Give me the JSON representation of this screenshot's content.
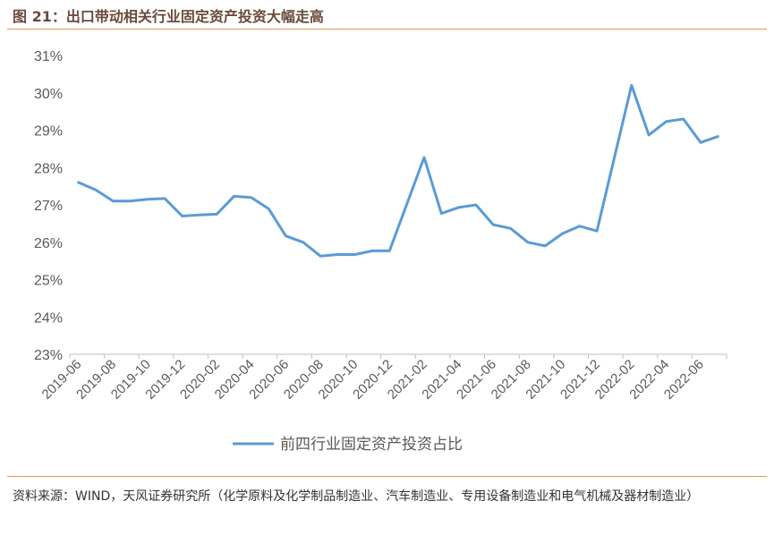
{
  "figure": {
    "title": "图 21：出口带动相关行业固定资产投资大幅走高",
    "source": "资料来源：WIND，天风证券研究所（化学原料及化学制品制造业、汽车制造业、专用设备制造业和电气机械及器材制造业）"
  },
  "colors": {
    "line": "#5b9bd5",
    "rule": "#e39a55",
    "axis": "#bfbfbf",
    "tick_text": "#595959"
  },
  "chart_data": {
    "type": "line",
    "title": "",
    "xlabel": "",
    "ylabel": "",
    "ylim": [
      23,
      31
    ],
    "y_ticks": [
      "23%",
      "24%",
      "25%",
      "26%",
      "27%",
      "28%",
      "29%",
      "30%",
      "31%"
    ],
    "grid": false,
    "legend_position": "bottom",
    "x": [
      "2019-06",
      "2019-07",
      "2019-08",
      "2019-09",
      "2019-10",
      "2019-11",
      "2019-12",
      "2020-01",
      "2020-02",
      "2020-03",
      "2020-04",
      "2020-05",
      "2020-06",
      "2020-07",
      "2020-08",
      "2020-09",
      "2020-10",
      "2020-11",
      "2020-12",
      "2021-01",
      "2021-02",
      "2021-03",
      "2021-04",
      "2021-05",
      "2021-06",
      "2021-07",
      "2021-08",
      "2021-09",
      "2021-10",
      "2021-11",
      "2021-12",
      "2022-01",
      "2022-02",
      "2022-03",
      "2022-04",
      "2022-05",
      "2022-06",
      "2022-07"
    ],
    "x_tick_labels": [
      "2019-06",
      "2019-08",
      "2019-10",
      "2019-12",
      "2020-02",
      "2020-04",
      "2020-06",
      "2020-08",
      "2020-10",
      "2020-12",
      "2021-02",
      "2021-04",
      "2021-06",
      "2021-08",
      "2021-10",
      "2021-12",
      "2022-02",
      "2022-04",
      "2022-06"
    ],
    "series": [
      {
        "name": "前四行业固定资产投资占比",
        "values": [
          27.6,
          27.4,
          27.1,
          27.1,
          27.15,
          27.17,
          26.7,
          26.73,
          26.75,
          27.23,
          27.2,
          26.9,
          26.17,
          26.0,
          25.63,
          25.67,
          25.67,
          25.77,
          25.77,
          null,
          28.27,
          26.77,
          26.93,
          27.0,
          26.47,
          26.37,
          26.0,
          25.9,
          26.23,
          26.43,
          26.3,
          null,
          30.2,
          28.87,
          29.23,
          29.3,
          28.67,
          28.83
        ]
      }
    ]
  }
}
